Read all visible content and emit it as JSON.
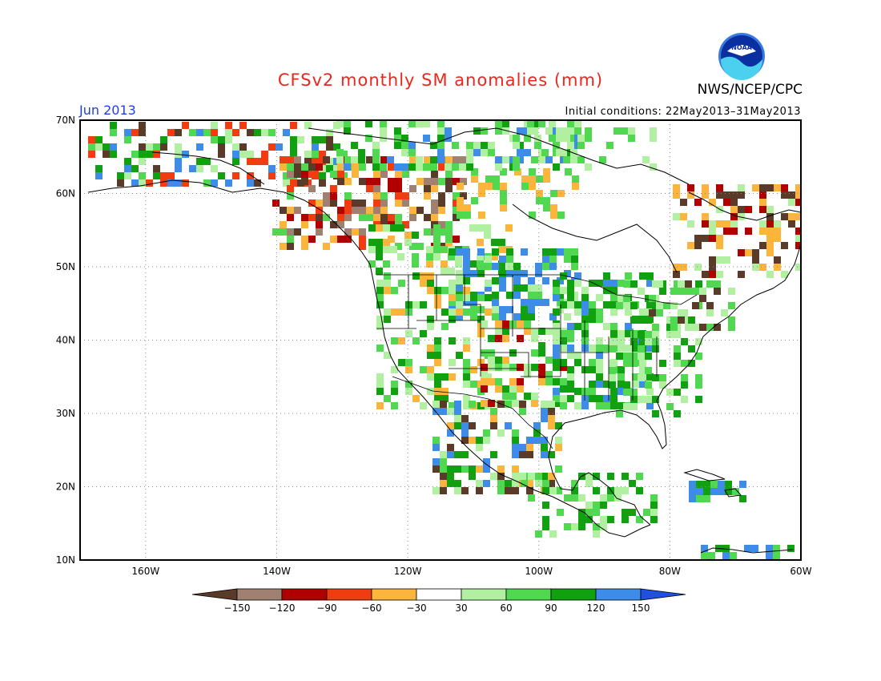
{
  "header": {
    "title": "CFSv2 monthly SM anomalies (mm)",
    "agency": "NWS/NCEP/CPC",
    "period": "Jun 2013",
    "initial_conditions": "Initial conditions: 22May2013–31May2013",
    "logo_label": "NOAA"
  },
  "map": {
    "lon_labels": [
      "160W",
      "140W",
      "120W",
      "100W",
      "80W",
      "60W"
    ],
    "lat_labels": [
      "70N",
      "60N",
      "50N",
      "40N",
      "30N",
      "20N",
      "10N"
    ],
    "lon_values": [
      -160,
      -140,
      -120,
      -100,
      -80,
      -60
    ],
    "lat_values": [
      70,
      60,
      50,
      40,
      30,
      20,
      10
    ],
    "lon_range": [
      -170,
      -60
    ],
    "lat_range": [
      10,
      70
    ],
    "grid": "dotted"
  },
  "colorbar": {
    "labels": [
      "−150",
      "−120",
      "−90",
      "−60",
      "−30",
      "30",
      "60",
      "90",
      "120",
      "150"
    ],
    "colors": [
      "#5a3a28",
      "#a08070",
      "#b00000",
      "#f03c10",
      "#fbb43c",
      "#ffffff",
      "#b0f0a0",
      "#50d850",
      "#10a010",
      "#3c8ce8",
      "#2050e0"
    ],
    "units": "mm"
  },
  "colors": {
    "title": "#e8281f",
    "period": "#1f3fe0"
  }
}
